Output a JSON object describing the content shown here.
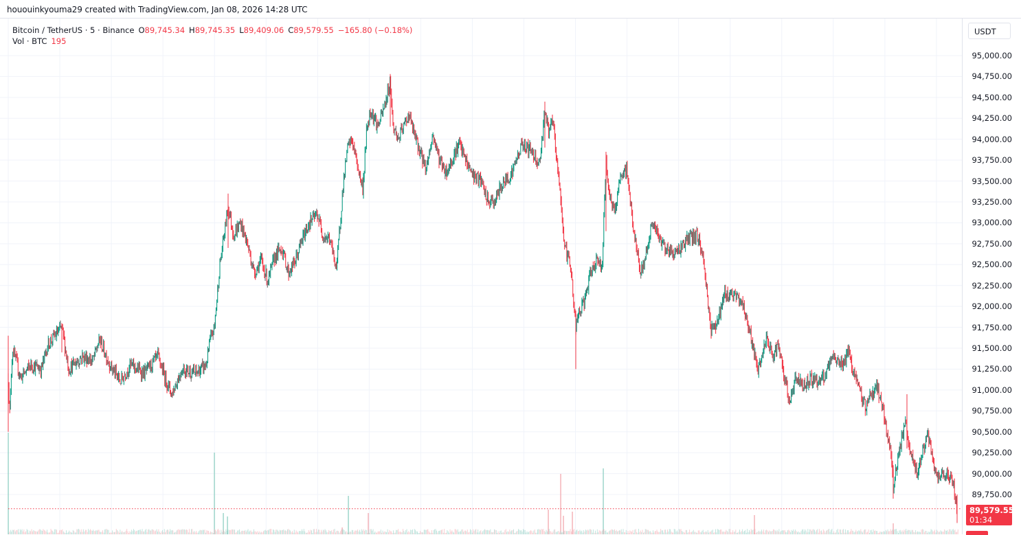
{
  "attribution": "hououinkyouma29 created with TradingView.com, Jan 08, 2026 14:28 UTC",
  "legend": {
    "symbol": "Bitcoin / TetherUS · 5 · Binance",
    "open_label": "O",
    "open": "89,745.34",
    "high_label": "H",
    "high": "89,745.35",
    "low_label": "L",
    "low": "89,409.06",
    "close_label": "C",
    "close": "89,579.55",
    "change": "−165.80 (−0.18%)",
    "volume_label": "Vol · BTC",
    "volume": "195"
  },
  "axis": {
    "currency": "USDT",
    "ticks": [
      "95,000.00",
      "94,750.00",
      "94,500.00",
      "94,250.00",
      "94,000.00",
      "93,750.00",
      "93,500.00",
      "93,250.00",
      "93,000.00",
      "92,750.00",
      "92,500.00",
      "92,250.00",
      "92,000.00",
      "91,750.00",
      "91,500.00",
      "91,250.00",
      "91,000.00",
      "90,750.00",
      "90,500.00",
      "90,250.00",
      "90,000.00",
      "89,750.00"
    ],
    "last_price": "89,579.55",
    "countdown": "01:34"
  },
  "colors": {
    "up": "#089981",
    "down": "#f23645",
    "neutral": "#6b6b6b",
    "grid": "#f0f3fa",
    "up_volume": "#8fcfc3",
    "down_volume": "#f2a7ae"
  },
  "chart_data": {
    "type": "candlestick",
    "title": "Bitcoin / TetherUS · 5 · Binance",
    "interval": "5m",
    "xlabel": "",
    "ylabel": "USDT",
    "ylim": [
      89500,
      95100
    ],
    "grid": true,
    "last": {
      "open": 89745.34,
      "high": 89745.35,
      "low": 89409.06,
      "close": 89579.55,
      "change": -165.8,
      "change_pct": -0.18,
      "volume": 195
    },
    "price_path": [
      [
        12,
        91150
      ],
      [
        14,
        90700
      ],
      [
        18,
        91500
      ],
      [
        30,
        91150
      ],
      [
        45,
        91300
      ],
      [
        60,
        91250
      ],
      [
        70,
        91550
      ],
      [
        90,
        91750
      ],
      [
        100,
        91250
      ],
      [
        120,
        91400
      ],
      [
        135,
        91350
      ],
      [
        145,
        91600
      ],
      [
        160,
        91300
      ],
      [
        175,
        91100
      ],
      [
        190,
        91300
      ],
      [
        210,
        91200
      ],
      [
        230,
        91400
      ],
      [
        240,
        91150
      ],
      [
        250,
        90950
      ],
      [
        265,
        91250
      ],
      [
        285,
        91200
      ],
      [
        300,
        91300
      ],
      [
        306,
        91600
      ],
      [
        312,
        91750
      ],
      [
        320,
        92500
      ],
      [
        326,
        92850
      ],
      [
        332,
        93200
      ],
      [
        340,
        92850
      ],
      [
        350,
        93000
      ],
      [
        360,
        92750
      ],
      [
        370,
        92400
      ],
      [
        380,
        92550
      ],
      [
        390,
        92300
      ],
      [
        400,
        92600
      ],
      [
        410,
        92700
      ],
      [
        420,
        92400
      ],
      [
        430,
        92550
      ],
      [
        440,
        92800
      ],
      [
        450,
        93000
      ],
      [
        462,
        93100
      ],
      [
        470,
        92850
      ],
      [
        480,
        92800
      ],
      [
        490,
        92450
      ],
      [
        494,
        92900
      ],
      [
        500,
        93500
      ],
      [
        506,
        93900
      ],
      [
        512,
        94000
      ],
      [
        520,
        93700
      ],
      [
        528,
        93400
      ],
      [
        534,
        94150
      ],
      [
        540,
        94350
      ],
      [
        550,
        94150
      ],
      [
        560,
        94400
      ],
      [
        568,
        94700
      ],
      [
        572,
        94150
      ],
      [
        580,
        94000
      ],
      [
        590,
        94200
      ],
      [
        595,
        94300
      ],
      [
        605,
        94000
      ],
      [
        620,
        93650
      ],
      [
        630,
        94050
      ],
      [
        640,
        93750
      ],
      [
        650,
        93600
      ],
      [
        660,
        93800
      ],
      [
        668,
        93950
      ],
      [
        680,
        93700
      ],
      [
        690,
        93550
      ],
      [
        700,
        93500
      ],
      [
        710,
        93250
      ],
      [
        720,
        93250
      ],
      [
        730,
        93450
      ],
      [
        745,
        93600
      ],
      [
        760,
        93950
      ],
      [
        775,
        93850
      ],
      [
        785,
        93700
      ],
      [
        790,
        94100
      ],
      [
        793,
        94350
      ],
      [
        798,
        94100
      ],
      [
        805,
        94200
      ],
      [
        810,
        93750
      ],
      [
        815,
        93400
      ],
      [
        820,
        92850
      ],
      [
        825,
        92600
      ],
      [
        830,
        92550
      ],
      [
        835,
        92000
      ],
      [
        838,
        91750
      ],
      [
        842,
        91900
      ],
      [
        850,
        92050
      ],
      [
        860,
        92400
      ],
      [
        870,
        92600
      ],
      [
        876,
        92400
      ],
      [
        878,
        92900
      ],
      [
        882,
        93700
      ],
      [
        888,
        93300
      ],
      [
        895,
        93100
      ],
      [
        900,
        93450
      ],
      [
        912,
        93650
      ],
      [
        918,
        93200
      ],
      [
        925,
        92750
      ],
      [
        932,
        92400
      ],
      [
        937,
        92500
      ],
      [
        945,
        92850
      ],
      [
        950,
        93000
      ],
      [
        960,
        92800
      ],
      [
        975,
        92650
      ],
      [
        985,
        92650
      ],
      [
        1000,
        92800
      ],
      [
        1015,
        92850
      ],
      [
        1022,
        92650
      ],
      [
        1030,
        92100
      ],
      [
        1035,
        91700
      ],
      [
        1045,
        91850
      ],
      [
        1055,
        92150
      ],
      [
        1065,
        92150
      ],
      [
        1080,
        92050
      ],
      [
        1090,
        91750
      ],
      [
        1095,
        91550
      ],
      [
        1103,
        91200
      ],
      [
        1110,
        91450
      ],
      [
        1115,
        91600
      ],
      [
        1125,
        91400
      ],
      [
        1132,
        91550
      ],
      [
        1140,
        91200
      ],
      [
        1150,
        90850
      ],
      [
        1158,
        91150
      ],
      [
        1170,
        91050
      ],
      [
        1180,
        91150
      ],
      [
        1190,
        91100
      ],
      [
        1200,
        91150
      ],
      [
        1210,
        91350
      ],
      [
        1215,
        91400
      ],
      [
        1225,
        91300
      ],
      [
        1235,
        91450
      ],
      [
        1243,
        91200
      ],
      [
        1250,
        91000
      ],
      [
        1260,
        90800
      ],
      [
        1265,
        90900
      ],
      [
        1275,
        91050
      ],
      [
        1282,
        90900
      ],
      [
        1290,
        90500
      ],
      [
        1296,
        90300
      ],
      [
        1300,
        89850
      ],
      [
        1305,
        90100
      ],
      [
        1312,
        90400
      ],
      [
        1318,
        90600
      ],
      [
        1322,
        90350
      ],
      [
        1328,
        90150
      ],
      [
        1335,
        90000
      ],
      [
        1342,
        90250
      ],
      [
        1350,
        90450
      ],
      [
        1358,
        90150
      ],
      [
        1365,
        89900
      ],
      [
        1372,
        90000
      ],
      [
        1380,
        90000
      ],
      [
        1386,
        89900
      ],
      [
        1390,
        89750
      ],
      [
        1393,
        89580
      ]
    ],
    "volume_spikes": [
      [
        12,
        148,
        "up"
      ],
      [
        312,
        119,
        "up"
      ],
      [
        325,
        31,
        "up"
      ],
      [
        331,
        26,
        "up"
      ],
      [
        498,
        10,
        "down"
      ],
      [
        507,
        56,
        "up"
      ],
      [
        536,
        31,
        "down"
      ],
      [
        798,
        36,
        "down"
      ],
      [
        816,
        88,
        "down"
      ],
      [
        820,
        27,
        "down"
      ],
      [
        833,
        33,
        "down"
      ],
      [
        878,
        96,
        "up"
      ],
      [
        1098,
        28,
        "down"
      ],
      [
        1300,
        16,
        "down"
      ]
    ]
  }
}
